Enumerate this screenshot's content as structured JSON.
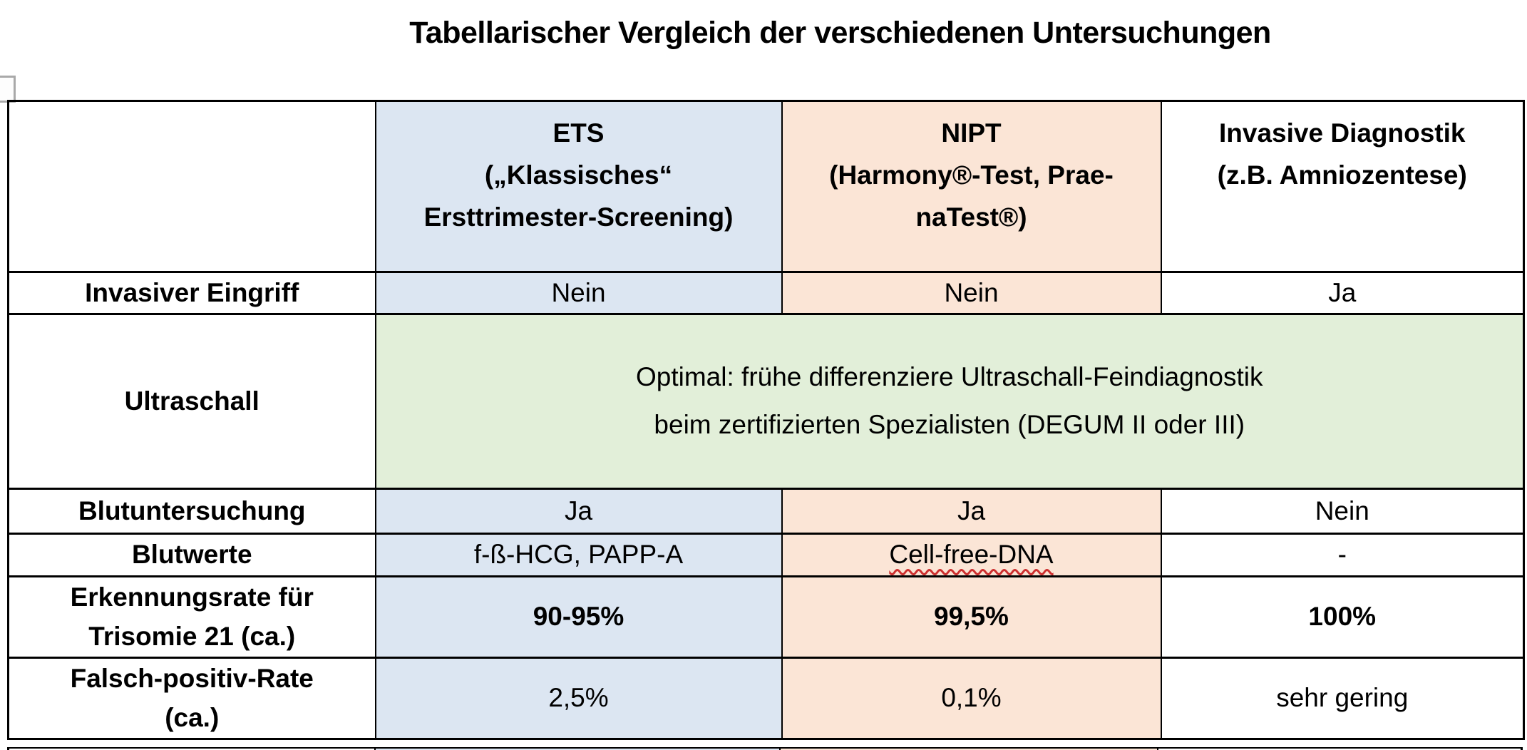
{
  "title": "Tabellarischer Vergleich der verschiedenen Untersuchungen",
  "colors": {
    "ets_bg": "#dce6f2",
    "nipt_bg": "#fbe5d6",
    "green_bg": "#e2efd9",
    "border": "#000000",
    "squiggle": "#cc2f2f"
  },
  "table": {
    "header": {
      "empty": "",
      "ets": "ETS\n(„Klassisches“\nErsttrimester-Screening)",
      "nipt": "NIPT\n(Harmony®-Test, Prae-\nnaTest®)",
      "invasive": "Invasive Diagnostik\n(z.B. Amniozentese)"
    },
    "rows": {
      "invasiver_eingriff": {
        "label": "Invasiver Eingriff",
        "ets": "Nein",
        "nipt": "Nein",
        "invasive": "Ja"
      },
      "ultraschall": {
        "label": "Ultraschall",
        "merged": "Optimal: frühe differenziere Ultraschall-Feindiagnostik\nbeim zertifizierten Spezialisten (DEGUM II oder III)"
      },
      "blutuntersuchung": {
        "label": "Blutuntersuchung",
        "ets": "Ja",
        "nipt": "Ja",
        "invasive": "Nein"
      },
      "blutwerte": {
        "label": "Blutwerte",
        "ets": "f-ß-HCG, PAPP-A",
        "nipt": "Cell-free-DNA",
        "invasive": "-"
      },
      "erkennungsrate": {
        "label": "Erkennungsrate für\nTrisomie 21 (ca.)",
        "ets": "90-95%",
        "nipt": "99,5%",
        "invasive": "100%"
      },
      "falsch_positiv": {
        "label": "Falsch-positiv-Rate\n(ca.)",
        "ets": "2,5%",
        "nipt": "0,1%",
        "invasive": "sehr gering"
      }
    }
  }
}
